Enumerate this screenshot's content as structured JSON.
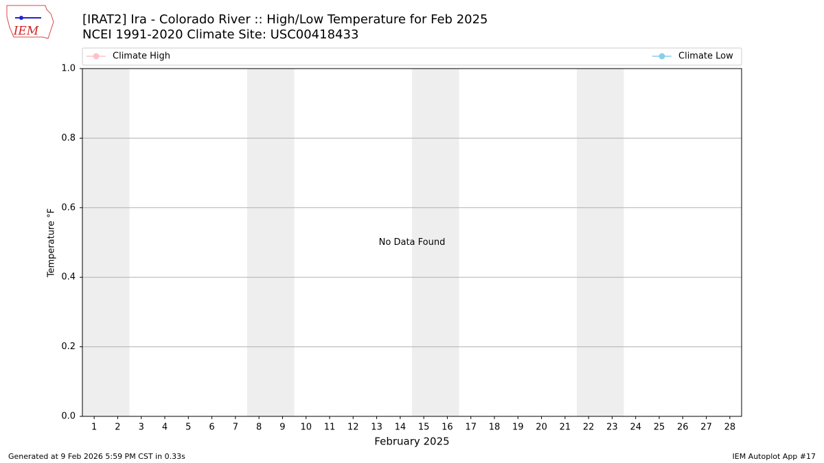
{
  "chart_data": {
    "type": "line",
    "logo": "IEM",
    "title": "[IRAT2] Ira - Colorado River :: High/Low Temperature for Feb 2025",
    "subtitle": "NCEI 1991-2020 Climate Site: USC00418433",
    "x_label": "February 2025",
    "y_label": "Temperature °F",
    "annotation": "No Data Found",
    "footer_left": "Generated at 9 Feb 2026 5:59 PM CST in 0.33s",
    "footer_right": "IEM Autoplot App #17",
    "x": [
      1,
      2,
      3,
      4,
      5,
      6,
      7,
      8,
      9,
      10,
      11,
      12,
      13,
      14,
      15,
      16,
      17,
      18,
      19,
      20,
      21,
      22,
      23,
      24,
      25,
      26,
      27,
      28
    ],
    "series": [
      {
        "name": "Climate High",
        "color": "#ffc0cb",
        "values": [
          null,
          null,
          null,
          null,
          null,
          null,
          null,
          null,
          null,
          null,
          null,
          null,
          null,
          null,
          null,
          null,
          null,
          null,
          null,
          null,
          null,
          null,
          null,
          null,
          null,
          null,
          null,
          null
        ]
      },
      {
        "name": "Climate Low",
        "color": "#87ceeb",
        "values": [
          null,
          null,
          null,
          null,
          null,
          null,
          null,
          null,
          null,
          null,
          null,
          null,
          null,
          null,
          null,
          null,
          null,
          null,
          null,
          null,
          null,
          null,
          null,
          null,
          null,
          null,
          null,
          null
        ]
      }
    ],
    "xlim": [
      0.5,
      28.5
    ],
    "xticks": [
      1,
      2,
      3,
      4,
      5,
      6,
      7,
      8,
      9,
      10,
      11,
      12,
      13,
      14,
      15,
      16,
      17,
      18,
      19,
      20,
      21,
      22,
      23,
      24,
      25,
      26,
      27,
      28
    ],
    "ylim": [
      0,
      1
    ],
    "yticks": [
      {
        "value": 0,
        "label": "0.0"
      },
      {
        "value": 0.2,
        "label": "0.2"
      },
      {
        "value": 0.4,
        "label": "0.4"
      },
      {
        "value": 0.6,
        "label": "0.6"
      },
      {
        "value": 0.8,
        "label": "0.8"
      },
      {
        "value": 1,
        "label": "1.0"
      }
    ],
    "shaded_spans": [
      [
        0.5,
        2.5
      ],
      [
        7.5,
        9.5
      ],
      [
        14.5,
        16.5
      ],
      [
        21.5,
        23.5
      ]
    ],
    "shade_color": "#eeeeee",
    "grid": "y"
  }
}
